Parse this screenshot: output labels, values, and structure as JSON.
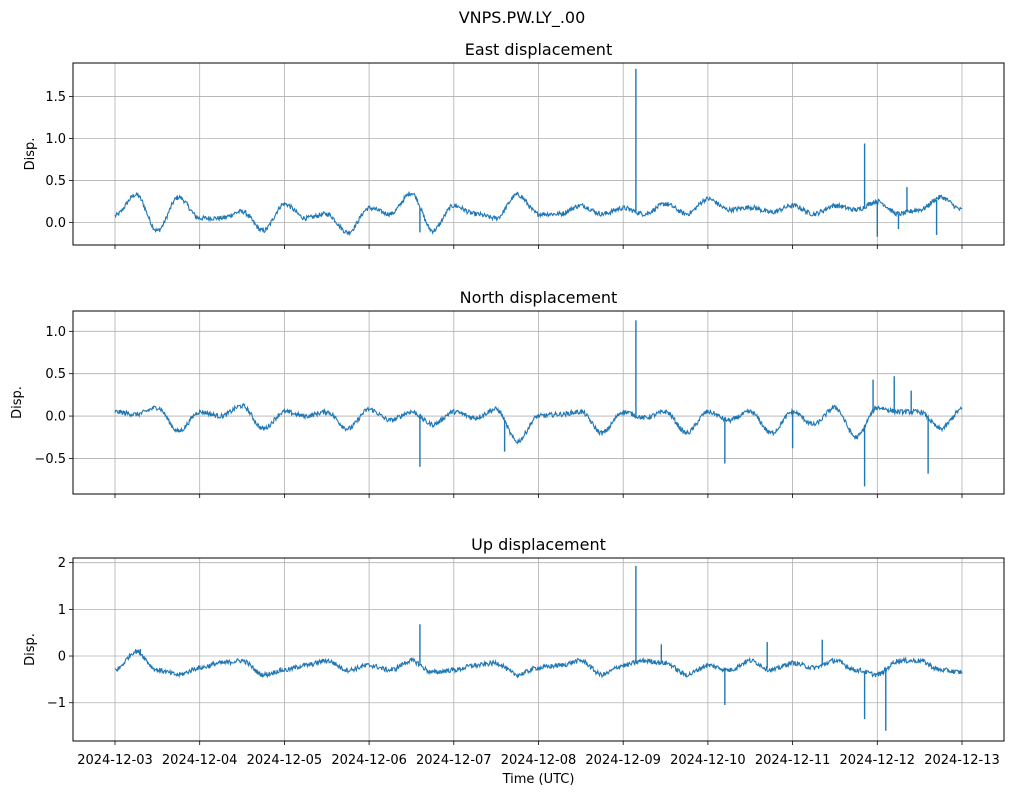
{
  "figure_title": "VNPS.PW.LY_.00",
  "colors": {
    "line": "#1f77b4",
    "grid": "#b0b0b0",
    "axis": "#000000"
  },
  "chart_data": [
    {
      "type": "line",
      "title": "East displacement",
      "ylabel": "Disp.",
      "xlabel": "",
      "ylim": [
        -0.27,
        1.9
      ],
      "yticks": [
        0.0,
        0.5,
        1.0,
        1.5
      ],
      "ytick_labels": [
        "0.0",
        "0.5",
        "1.0",
        "1.5"
      ],
      "x_range": [
        "2024-12-02T12:00",
        "2024-12-13T12:00"
      ],
      "x": [
        0,
        0.25,
        0.5,
        0.75,
        1.0,
        1.25,
        1.5,
        1.75,
        2.0,
        2.25,
        2.5,
        2.75,
        3.0,
        3.25,
        3.5,
        3.75,
        4.0,
        4.25,
        4.5,
        4.75,
        5.0,
        5.25,
        5.5,
        5.75,
        6.0,
        6.25,
        6.5,
        6.75,
        7.0,
        7.25,
        7.5,
        7.75,
        8.0,
        8.25,
        8.5,
        8.75,
        9.0,
        9.25,
        9.5,
        9.75,
        10.0
      ],
      "values": [
        0.08,
        0.33,
        -0.1,
        0.3,
        0.05,
        0.05,
        0.13,
        -0.1,
        0.22,
        0.05,
        0.1,
        -0.12,
        0.17,
        0.1,
        0.35,
        -0.1,
        0.2,
        0.1,
        0.05,
        0.33,
        0.1,
        0.1,
        0.2,
        0.1,
        0.17,
        0.1,
        0.22,
        0.1,
        0.28,
        0.15,
        0.18,
        0.12,
        0.2,
        0.1,
        0.2,
        0.15,
        0.25,
        0.1,
        0.15,
        0.3,
        0.15
      ],
      "spikes": [
        {
          "x": 6.15,
          "value": 1.83
        },
        {
          "x": 8.85,
          "value": 0.94
        },
        {
          "x": 9.35,
          "value": 0.42
        },
        {
          "x": 9.0,
          "value": -0.17
        },
        {
          "x": 9.7,
          "value": -0.15
        },
        {
          "x": 9.25,
          "value": -0.08
        },
        {
          "x": 3.6,
          "value": -0.12
        }
      ]
    },
    {
      "type": "line",
      "title": "North displacement",
      "ylabel": "Disp.",
      "xlabel": "",
      "ylim": [
        -0.92,
        1.24
      ],
      "yticks": [
        -0.5,
        0.0,
        0.5,
        1.0
      ],
      "ytick_labels": [
        "−0.5",
        "0.0",
        "0.5",
        "1.0"
      ],
      "x_range": [
        "2024-12-02T12:00",
        "2024-12-13T12:00"
      ],
      "x": [
        0,
        0.25,
        0.5,
        0.75,
        1.0,
        1.25,
        1.5,
        1.75,
        2.0,
        2.25,
        2.5,
        2.75,
        3.0,
        3.25,
        3.5,
        3.75,
        4.0,
        4.25,
        4.5,
        4.75,
        5.0,
        5.25,
        5.5,
        5.75,
        6.0,
        6.25,
        6.5,
        6.75,
        7.0,
        7.25,
        7.5,
        7.75,
        8.0,
        8.25,
        8.5,
        8.75,
        9.0,
        9.25,
        9.5,
        9.75,
        10.0
      ],
      "values": [
        0.05,
        0.02,
        0.1,
        -0.18,
        0.05,
        0.0,
        0.12,
        -0.15,
        0.05,
        0.0,
        0.05,
        -0.15,
        0.08,
        -0.05,
        0.05,
        -0.1,
        0.05,
        -0.02,
        0.08,
        -0.3,
        0.0,
        0.02,
        0.05,
        -0.2,
        0.05,
        -0.02,
        0.05,
        -0.2,
        0.05,
        -0.05,
        0.05,
        -0.2,
        0.05,
        -0.1,
        0.1,
        -0.25,
        0.1,
        0.05,
        0.05,
        -0.15,
        0.08
      ],
      "spikes": [
        {
          "x": 6.15,
          "value": 1.13
        },
        {
          "x": 3.6,
          "value": -0.6
        },
        {
          "x": 4.6,
          "value": -0.42
        },
        {
          "x": 7.2,
          "value": -0.56
        },
        {
          "x": 8.0,
          "value": -0.38
        },
        {
          "x": 8.85,
          "value": -0.83
        },
        {
          "x": 9.2,
          "value": 0.47
        },
        {
          "x": 8.95,
          "value": 0.43
        },
        {
          "x": 9.6,
          "value": -0.68
        },
        {
          "x": 9.4,
          "value": 0.3
        }
      ]
    },
    {
      "type": "line",
      "title": "Up displacement",
      "ylabel": "Disp.",
      "xlabel": "Time (UTC)",
      "ylim": [
        -1.82,
        2.1
      ],
      "yticks": [
        -1,
        0,
        1,
        2
      ],
      "ytick_labels": [
        "−1",
        "0",
        "1",
        "2"
      ],
      "x_range": [
        "2024-12-02T12:00",
        "2024-12-13T12:00"
      ],
      "xticks": [
        "2024-12-03",
        "2024-12-04",
        "2024-12-05",
        "2024-12-06",
        "2024-12-07",
        "2024-12-08",
        "2024-12-09",
        "2024-12-10",
        "2024-12-11",
        "2024-12-12",
        "2024-12-13"
      ],
      "x": [
        0,
        0.25,
        0.5,
        0.75,
        1.0,
        1.25,
        1.5,
        1.75,
        2.0,
        2.25,
        2.5,
        2.75,
        3.0,
        3.25,
        3.5,
        3.75,
        4.0,
        4.25,
        4.5,
        4.75,
        5.0,
        5.25,
        5.5,
        5.75,
        6.0,
        6.25,
        6.5,
        6.75,
        7.0,
        7.25,
        7.5,
        7.75,
        8.0,
        8.25,
        8.5,
        8.75,
        9.0,
        9.25,
        9.5,
        9.75,
        10.0
      ],
      "values": [
        -0.3,
        0.1,
        -0.3,
        -0.4,
        -0.25,
        -0.15,
        -0.1,
        -0.4,
        -0.3,
        -0.2,
        -0.1,
        -0.3,
        -0.2,
        -0.3,
        -0.1,
        -0.35,
        -0.3,
        -0.2,
        -0.15,
        -0.4,
        -0.25,
        -0.2,
        -0.1,
        -0.4,
        -0.2,
        -0.1,
        -0.15,
        -0.4,
        -0.2,
        -0.3,
        -0.1,
        -0.3,
        -0.15,
        -0.25,
        -0.1,
        -0.3,
        -0.4,
        -0.1,
        -0.1,
        -0.3,
        -0.35
      ],
      "spikes": [
        {
          "x": 6.15,
          "value": 1.93
        },
        {
          "x": 3.6,
          "value": 0.68
        },
        {
          "x": 7.2,
          "value": -1.05
        },
        {
          "x": 8.85,
          "value": -1.35
        },
        {
          "x": 9.1,
          "value": -1.6
        },
        {
          "x": 0.3,
          "value": 0.15
        },
        {
          "x": 6.45,
          "value": 0.25
        },
        {
          "x": 7.7,
          "value": 0.3
        },
        {
          "x": 8.35,
          "value": 0.35
        }
      ]
    }
  ]
}
